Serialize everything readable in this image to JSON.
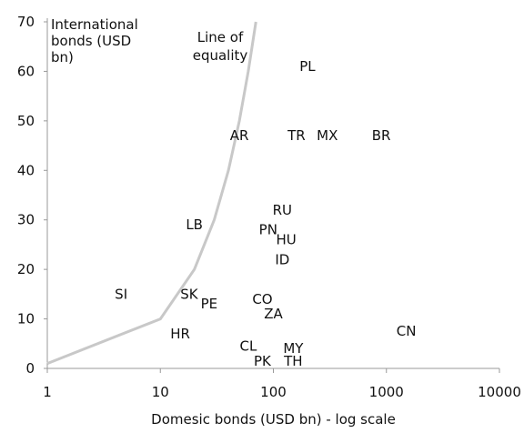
{
  "chart_data": {
    "type": "scatter",
    "title": "",
    "xlabel": "Domesic bonds (USD bn) - log scale",
    "ylabel": "International bonds (USD bn)",
    "x_scale": "log",
    "xlim": [
      1,
      10000
    ],
    "ylim": [
      0,
      70
    ],
    "x_ticks": [
      1,
      10,
      100,
      1000,
      10000
    ],
    "x_tick_labels": [
      "1",
      "10",
      "100",
      "1000",
      "10000"
    ],
    "y_ticks": [
      0,
      10,
      20,
      30,
      40,
      50,
      60,
      70
    ],
    "y_tick_labels": [
      "0",
      "10",
      "20",
      "30",
      "40",
      "50",
      "60",
      "70"
    ],
    "grid": false,
    "points": [
      {
        "label": "PL",
        "x": 200,
        "y": 61
      },
      {
        "label": "AR",
        "x": 50,
        "y": 47
      },
      {
        "label": "TR",
        "x": 160,
        "y": 47
      },
      {
        "label": "MX",
        "x": 300,
        "y": 47
      },
      {
        "label": "BR",
        "x": 900,
        "y": 47
      },
      {
        "label": "RU",
        "x": 120,
        "y": 32
      },
      {
        "label": "PN",
        "x": 90,
        "y": 28
      },
      {
        "label": "HU",
        "x": 130,
        "y": 26
      },
      {
        "label": "LB",
        "x": 20,
        "y": 29
      },
      {
        "label": "ID",
        "x": 120,
        "y": 22
      },
      {
        "label": "SI",
        "x": 4.5,
        "y": 15
      },
      {
        "label": "SK",
        "x": 18,
        "y": 15
      },
      {
        "label": "PE",
        "x": 27,
        "y": 13
      },
      {
        "label": "CO",
        "x": 80,
        "y": 14
      },
      {
        "label": "ZA",
        "x": 100,
        "y": 11
      },
      {
        "label": "HR",
        "x": 15,
        "y": 7
      },
      {
        "label": "CN",
        "x": 1500,
        "y": 7.5
      },
      {
        "label": "CL",
        "x": 60,
        "y": 4.5
      },
      {
        "label": "MY",
        "x": 150,
        "y": 4
      },
      {
        "label": "PK",
        "x": 80,
        "y": 1.5
      },
      {
        "label": "TH",
        "x": 150,
        "y": 1.5
      }
    ],
    "reference_line": {
      "name": "Line of equality",
      "x": [
        1,
        10,
        20,
        30,
        40,
        50,
        60,
        70
      ],
      "y": [
        1,
        10,
        20,
        30,
        40,
        50,
        60,
        70
      ]
    },
    "annotations": {
      "y_axis_title": [
        "International",
        "bonds (USD",
        "bn)"
      ],
      "equality_label": [
        "Line of",
        "equality"
      ]
    }
  }
}
